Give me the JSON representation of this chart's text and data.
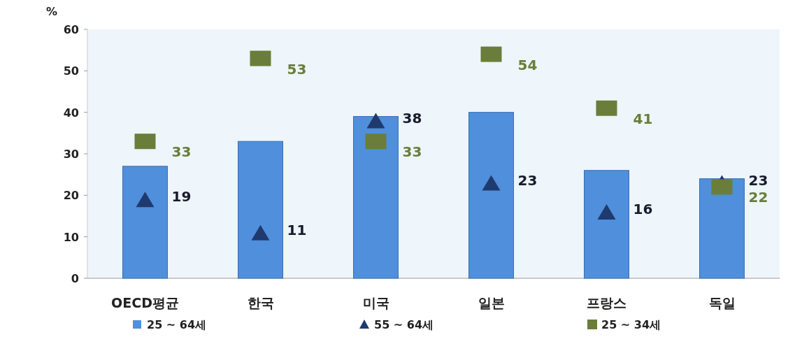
{
  "chart_data": {
    "type": "bar",
    "ylabel": "%",
    "categories": [
      "OECD평균",
      "한국",
      "미국",
      "일본",
      "프랑스",
      "독일"
    ],
    "series": [
      {
        "name": "25 ~ 64세",
        "color": "#4f8fdc",
        "values": [
          27,
          33,
          39,
          40,
          26,
          24
        ]
      },
      {
        "name": "55 ~ 64세",
        "type": "scatter",
        "marker": "triangle",
        "color": "#1f3a6e",
        "values": [
          19,
          11,
          38,
          23,
          16,
          23
        ],
        "value_labels": [
          "19",
          "11",
          "38",
          "23",
          "16",
          "23"
        ]
      },
      {
        "name": "25 ~ 34세",
        "type": "scatter",
        "marker": "square",
        "color": "#6b7d3a",
        "values": [
          33,
          53,
          33,
          54,
          41,
          22
        ],
        "value_labels": [
          "33",
          "53",
          "33",
          "54",
          "41",
          "22"
        ]
      }
    ],
    "ylim": [
      0,
      60
    ],
    "yticks": [
      0,
      10,
      20,
      30,
      40,
      50,
      60
    ],
    "legend": "bottom"
  }
}
